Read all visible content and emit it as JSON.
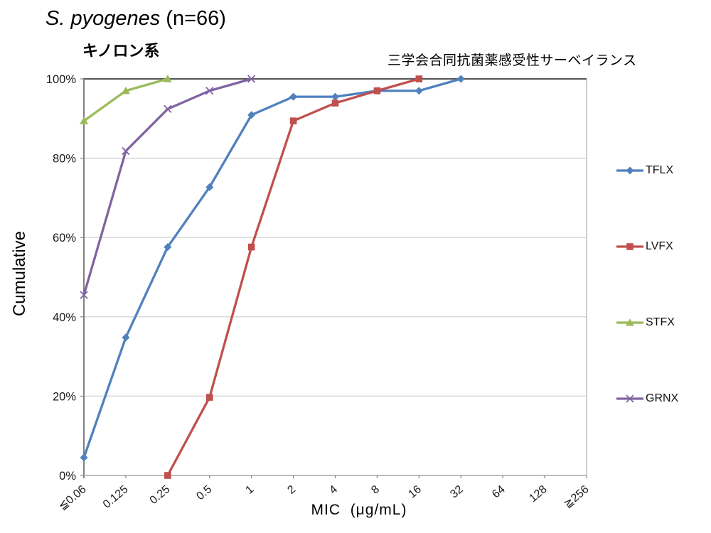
{
  "chart_data": {
    "type": "line",
    "title_species": "S. pyogenes",
    "title_n": " (n=66)",
    "subtitle": "キノロン系",
    "annotation": "三学会合同抗菌薬感受性サーベイランス",
    "xlabel": "MIC  (μg/mL)",
    "ylabel": "Cumulative",
    "categories": [
      "≦0.06",
      "0.125",
      "0.25",
      "0.5",
      "1",
      "2",
      "4",
      "8",
      "16",
      "32",
      "64",
      "128",
      "≧256"
    ],
    "ylim": [
      0,
      100
    ],
    "yticks": [
      {
        "label": "0%",
        "value": 0
      },
      {
        "label": "20%",
        "value": 20
      },
      {
        "label": "40%",
        "value": 40
      },
      {
        "label": "60%",
        "value": 60
      },
      {
        "label": "80%",
        "value": 80
      },
      {
        "label": "100%",
        "value": 100
      }
    ],
    "grid": true,
    "legend_position": "right",
    "series": [
      {
        "name": "TFLX",
        "color": "#4F81BD",
        "marker": "diamond",
        "points": [
          [
            "≦0.06",
            4.5
          ],
          [
            "0.125",
            34.8
          ],
          [
            "0.25",
            57.6
          ],
          [
            "0.5",
            72.7
          ],
          [
            "1",
            90.9
          ],
          [
            "2",
            95.5
          ],
          [
            "4",
            95.5
          ],
          [
            "8",
            97
          ],
          [
            "16",
            97
          ],
          [
            "32",
            100
          ]
        ]
      },
      {
        "name": "LVFX",
        "color": "#C0504D",
        "marker": "square",
        "points": [
          [
            "0.25",
            0
          ],
          [
            "0.5",
            19.7
          ],
          [
            "1",
            57.6
          ],
          [
            "2",
            89.4
          ],
          [
            "4",
            93.9
          ],
          [
            "8",
            97
          ],
          [
            "16",
            100
          ]
        ]
      },
      {
        "name": "STFX",
        "color": "#9BBB59",
        "marker": "triangle",
        "points": [
          [
            "≦0.06",
            89.4
          ],
          [
            "0.125",
            97
          ],
          [
            "0.25",
            100
          ]
        ]
      },
      {
        "name": "GRNX",
        "color": "#8064A2",
        "marker": "x",
        "points": [
          [
            "≦0.06",
            45.5
          ],
          [
            "0.125",
            81.8
          ],
          [
            "0.25",
            92.4
          ],
          [
            "0.5",
            97
          ],
          [
            "1",
            100
          ]
        ]
      }
    ],
    "colors": {
      "gridline": "#D9D9D9",
      "left_axis": "#808080",
      "bottom_axis": "#BFBFBF",
      "top_border": "#595959",
      "right_border": "#BFBFBF",
      "tick": "#808080",
      "tick_label": "#1a1a1a"
    }
  }
}
